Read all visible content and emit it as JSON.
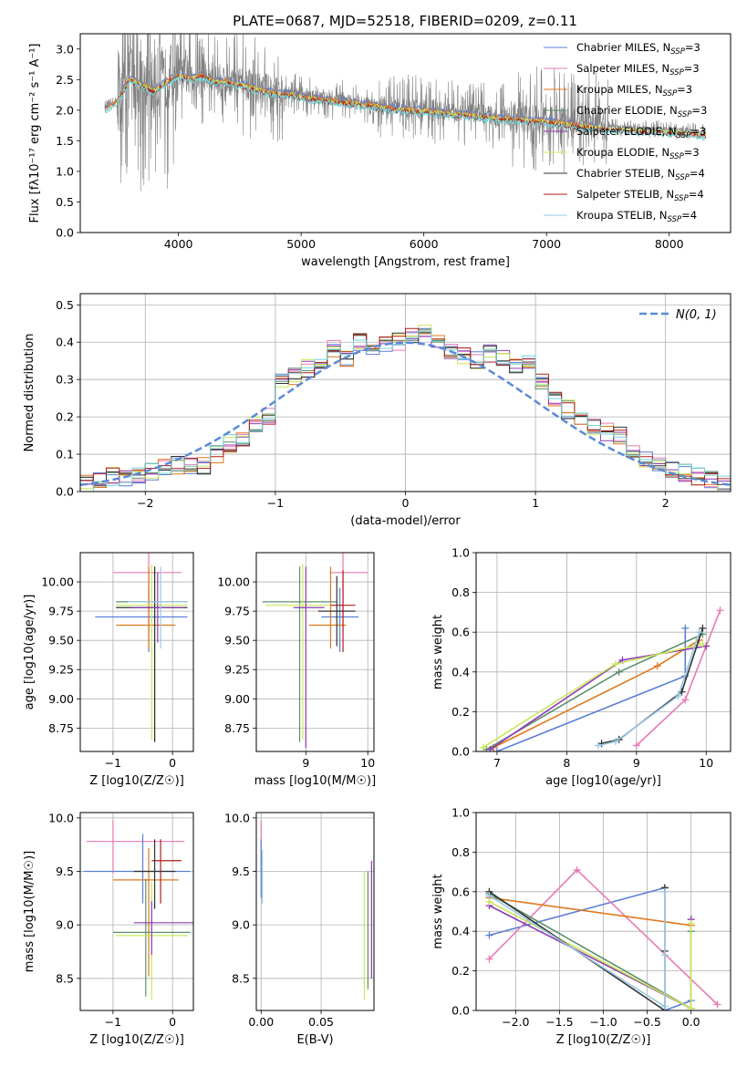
{
  "figure": {
    "title": "PLATE=0687, MJD=52518, FIBERID=0209, z=0.11"
  },
  "colors": {
    "Chabrier MILES": "#5b7fd6",
    "Salpeter MILES": "#e87ab4",
    "Kroupa MILES": "#e0781e",
    "Chabrier ELODIE": "#5b8f6b",
    "Salpeter ELODIE": "#8e3bb5",
    "Kroupa ELODIE": "#c8e85a",
    "Chabrier STELIB": "#333333",
    "Salpeter STELIB": "#b01c1c",
    "Kroupa STELIB": "#9ac8e0",
    "data": "#808080",
    "model_cyan": "#6fd4da",
    "normal": "#5b8ad6",
    "grid": "#b0b0b0"
  },
  "chart_data": [
    {
      "id": "spectrum",
      "type": "line",
      "title": "PLATE=0687, MJD=52518, FIBERID=0209, z=0.11",
      "xlabel": "wavelength [Angstrom, rest frame]",
      "ylabel": "Flux [fλ10⁻¹⁷ erg cm⁻² s⁻¹ A⁻¹]",
      "xlim": [
        3200,
        8500
      ],
      "ylim": [
        0,
        3.25
      ],
      "xticks": [
        4000,
        5000,
        6000,
        7000,
        8000
      ],
      "yticks": [
        0.0,
        0.5,
        1.0,
        1.5,
        2.0,
        2.5,
        3.0
      ],
      "grid": false,
      "legend_position": "upper right",
      "continuum": {
        "x": [
          3400,
          3500,
          3600,
          3700,
          3800,
          3900,
          4000,
          4100,
          4200,
          4300,
          4400,
          4500,
          4600,
          4700,
          4800,
          4900,
          5000,
          5200,
          5400,
          5600,
          5800,
          6000,
          6200,
          6400,
          6600,
          6800,
          7000,
          7200,
          7400,
          7600,
          7800,
          8000,
          8200,
          8300
        ],
        "y": [
          2.05,
          2.15,
          2.55,
          2.45,
          2.35,
          2.5,
          2.6,
          2.55,
          2.6,
          2.5,
          2.5,
          2.45,
          2.4,
          2.35,
          2.3,
          2.3,
          2.25,
          2.2,
          2.15,
          2.1,
          2.05,
          2.02,
          1.98,
          1.95,
          1.9,
          1.88,
          1.85,
          1.8,
          1.75,
          1.72,
          1.7,
          1.68,
          1.65,
          1.63
        ]
      },
      "legend": [
        {
          "label": "Chabrier MILES, N",
          "sub": "SSP",
          "tail": "=3"
        },
        {
          "label": "Salpeter MILES, N",
          "sub": "SSP",
          "tail": "=3"
        },
        {
          "label": "Kroupa MILES, N",
          "sub": "SSP",
          "tail": "=3"
        },
        {
          "label": "Chabrier ELODIE, N",
          "sub": "SSP",
          "tail": "=3"
        },
        {
          "label": "Salpeter ELODIE, N",
          "sub": "SSP",
          "tail": "=3"
        },
        {
          "label": "Kroupa ELODIE, N",
          "sub": "SSP",
          "tail": "=3"
        },
        {
          "label": "Chabrier STELIB, N",
          "sub": "SSP",
          "tail": "=4"
        },
        {
          "label": "Salpeter STELIB, N",
          "sub": "SSP",
          "tail": "=4"
        },
        {
          "label": "Kroupa STELIB, N",
          "sub": "SSP",
          "tail": "=4"
        }
      ]
    },
    {
      "id": "residuals",
      "type": "histogram",
      "xlabel": "(data-model)/error",
      "ylabel": "Normed distribution",
      "xlim": [
        -2.5,
        2.5
      ],
      "ylim": [
        0,
        0.53
      ],
      "xticks": [
        -2,
        -1,
        0,
        1,
        2
      ],
      "yticks": [
        0.0,
        0.1,
        0.2,
        0.3,
        0.4,
        0.5
      ],
      "grid": true,
      "legend_position": "upper right",
      "normal_label": "N(0, 1)",
      "bin_edges": [
        -2.5,
        -2.4,
        -2.3,
        -2.2,
        -2.1,
        -2.0,
        -1.9,
        -1.8,
        -1.7,
        -1.6,
        -1.5,
        -1.4,
        -1.3,
        -1.2,
        -1.1,
        -1.0,
        -0.9,
        -0.8,
        -0.7,
        -0.6,
        -0.5,
        -0.4,
        -0.3,
        -0.2,
        -0.1,
        0.0,
        0.1,
        0.2,
        0.3,
        0.4,
        0.5,
        0.6,
        0.7,
        0.8,
        0.9,
        1.0,
        1.1,
        1.2,
        1.3,
        1.4,
        1.5,
        1.6,
        1.7,
        1.8,
        1.9,
        2.0,
        2.1,
        2.2,
        2.3,
        2.4,
        2.5
      ],
      "base_heights": [
        0.02,
        0.03,
        0.04,
        0.04,
        0.04,
        0.05,
        0.07,
        0.07,
        0.07,
        0.07,
        0.1,
        0.13,
        0.14,
        0.18,
        0.2,
        0.3,
        0.31,
        0.33,
        0.35,
        0.38,
        0.36,
        0.4,
        0.37,
        0.39,
        0.4,
        0.42,
        0.43,
        0.4,
        0.38,
        0.36,
        0.35,
        0.37,
        0.36,
        0.34,
        0.34,
        0.3,
        0.25,
        0.22,
        0.19,
        0.17,
        0.16,
        0.15,
        0.1,
        0.09,
        0.08,
        0.06,
        0.05,
        0.04,
        0.03,
        0.02
      ]
    },
    {
      "id": "age_vs_Z",
      "type": "errorbar",
      "xlabel": "Z [log10(Z/Z☉)]",
      "ylabel": "age  [log10(age/yr)]",
      "xlim": [
        -1.55,
        0.35
      ],
      "ylim": [
        8.55,
        10.25
      ],
      "xticks": [
        -1,
        0
      ],
      "xticklabels": [
        "−1",
        "0"
      ],
      "yticks": [
        8.75,
        9.0,
        9.25,
        9.5,
        9.75,
        10.0
      ],
      "yticklabels": [
        "8.75",
        "9.00",
        "9.25",
        "9.50",
        "9.75",
        "10.00"
      ],
      "grid": true,
      "points": [
        {
          "model": "Salpeter MILES",
          "x": -0.4,
          "xerr": [
            0.6,
            0.55
          ],
          "y": 10.08,
          "yerr": [
            0.5,
            0.2
          ]
        },
        {
          "model": "Chabrier MILES",
          "x": -0.4,
          "xerr": [
            0.9,
            0.65
          ],
          "y": 9.7,
          "yerr": [
            0.3,
            0.25
          ]
        },
        {
          "model": "Kroupa MILES",
          "x": -0.4,
          "xerr": [
            0.55,
            0.45
          ],
          "y": 9.63,
          "yerr": [
            0.2,
            0.5
          ]
        },
        {
          "model": "Chabrier ELODIE",
          "x": -0.3,
          "xerr": [
            0.65,
            0.55
          ],
          "y": 9.83,
          "yerr": [
            1.2,
            0.3
          ]
        },
        {
          "model": "Kroupa ELODIE",
          "x": -0.35,
          "xerr": [
            0.6,
            0.6
          ],
          "y": 9.8,
          "yerr": [
            1.15,
            0.35
          ]
        },
        {
          "model": "Chabrier STELIB",
          "x": -0.3,
          "xerr": [
            0.65,
            0.55
          ],
          "y": 9.78,
          "yerr": [
            1.15,
            0.35
          ]
        },
        {
          "model": "Salpeter ELODIE",
          "x": -0.25,
          "xerr": [
            0.45,
            0.45
          ],
          "y": 9.78,
          "yerr": [
            0.3,
            0.3
          ]
        },
        {
          "model": "Kroupa STELIB",
          "x": -0.2,
          "xerr": [
            0.55,
            0.45
          ],
          "y": 9.83,
          "yerr": [
            0.4,
            0.3
          ]
        }
      ]
    },
    {
      "id": "age_vs_mass",
      "type": "errorbar",
      "xlabel": "mass [log10(M/M☉)]",
      "ylabel": "",
      "xlim": [
        8.2,
        10.1
      ],
      "ylim": [
        8.55,
        10.25
      ],
      "xticks": [
        9,
        10
      ],
      "xticklabels": [
        "9",
        "10"
      ],
      "yticks": [
        8.75,
        9.0,
        9.25,
        9.5,
        9.75,
        10.0
      ],
      "yticklabels": [
        "8.75",
        "9.00",
        "9.25",
        "9.50",
        "9.75",
        "10.00"
      ],
      "grid": true,
      "points": [
        {
          "model": "Salpeter MILES",
          "x": 9.6,
          "xerr": [
            0.2,
            0.4
          ],
          "y": 10.08,
          "yerr": [
            0.5,
            0.2
          ]
        },
        {
          "model": "Chabrier MILES",
          "x": 9.55,
          "xerr": [
            0.3,
            0.3
          ],
          "y": 9.7,
          "yerr": [
            0.3,
            0.25
          ]
        },
        {
          "model": "Kroupa MILES",
          "x": 9.4,
          "xerr": [
            0.35,
            0.25
          ],
          "y": 9.63,
          "yerr": [
            0.2,
            0.5
          ]
        },
        {
          "model": "Chabrier ELODIE",
          "x": 8.9,
          "xerr": [
            0.6,
            0.6
          ],
          "y": 9.83,
          "yerr": [
            1.2,
            0.3
          ]
        },
        {
          "model": "Kroupa ELODIE",
          "x": 8.95,
          "xerr": [
            0.6,
            0.5
          ],
          "y": 9.8,
          "yerr": [
            1.15,
            0.35
          ]
        },
        {
          "model": "Salpeter ELODIE",
          "x": 9.0,
          "xerr": [
            0.2,
            0.3
          ],
          "y": 9.78,
          "yerr": [
            1.2,
            0.35
          ]
        },
        {
          "model": "Salpeter STELIB",
          "x": 9.6,
          "xerr": [
            0.2,
            0.2
          ],
          "y": 9.8,
          "yerr": [
            0.4,
            0.3
          ]
        },
        {
          "model": "Chabrier STELIB",
          "x": 9.5,
          "xerr": [
            0.3,
            0.3
          ],
          "y": 9.75,
          "yerr": [
            0.3,
            0.3
          ]
        }
      ]
    },
    {
      "id": "weight_vs_age",
      "type": "line",
      "xlabel": "age  [log10(age/yr)]",
      "ylabel": "mass weight",
      "xlim": [
        6.7,
        10.35
      ],
      "ylim": [
        0,
        1.0
      ],
      "xticks": [
        7,
        8,
        9,
        10
      ],
      "yticks": [
        0.0,
        0.2,
        0.4,
        0.6,
        0.8,
        1.0
      ],
      "grid": true,
      "series": [
        {
          "model": "Chabrier MILES",
          "x": [
            7.0,
            9.7,
            9.7
          ],
          "y": [
            0.0,
            0.38,
            0.62
          ]
        },
        {
          "model": "Salpeter MILES",
          "x": [
            9.0,
            9.7,
            10.2
          ],
          "y": [
            0.03,
            0.26,
            0.71
          ]
        },
        {
          "model": "Kroupa MILES",
          "x": [
            6.95,
            9.3,
            9.9
          ],
          "y": [
            0.02,
            0.43,
            0.56
          ]
        },
        {
          "model": "Chabrier ELODIE",
          "x": [
            6.85,
            8.75,
            9.95
          ],
          "y": [
            0.01,
            0.4,
            0.59
          ]
        },
        {
          "model": "Salpeter ELODIE",
          "x": [
            6.9,
            8.8,
            10.0
          ],
          "y": [
            0.01,
            0.46,
            0.53
          ]
        },
        {
          "model": "Kroupa ELODIE",
          "x": [
            6.8,
            8.7,
            9.95
          ],
          "y": [
            0.02,
            0.44,
            0.54
          ]
        },
        {
          "model": "Chabrier STELIB",
          "x": [
            8.5,
            8.75,
            9.65,
            9.95
          ],
          "y": [
            0.04,
            0.06,
            0.3,
            0.62
          ]
        },
        {
          "model": "Kroupa STELIB",
          "x": [
            8.45,
            8.7,
            9.6,
            9.9
          ],
          "y": [
            0.03,
            0.05,
            0.28,
            0.6
          ]
        }
      ]
    },
    {
      "id": "mass_vs_Z",
      "type": "errorbar",
      "xlabel": "Z [log10(Z/Z☉)]",
      "ylabel": "mass [log10(M/M☉)]",
      "xlim": [
        -1.55,
        0.35
      ],
      "ylim": [
        8.2,
        10.05
      ],
      "xticks": [
        -1,
        0
      ],
      "xticklabels": [
        "−1",
        "0"
      ],
      "yticks": [
        8.5,
        9.0,
        9.5,
        10.0
      ],
      "yticklabels": [
        "8.5",
        "9.0",
        "9.5",
        "10.0"
      ],
      "grid": true,
      "points": [
        {
          "model": "Salpeter MILES",
          "x": -1.0,
          "xerr": [
            0.45,
            1.2
          ],
          "y": 9.78,
          "yerr": [
            0.3,
            0.2
          ]
        },
        {
          "model": "Chabrier MILES",
          "x": -0.5,
          "xerr": [
            1.0,
            0.8
          ],
          "y": 9.5,
          "yerr": [
            0.3,
            0.35
          ]
        },
        {
          "model": "Kroupa MILES",
          "x": -0.4,
          "xerr": [
            0.6,
            0.5
          ],
          "y": 9.42,
          "yerr": [
            0.9,
            0.3
          ]
        },
        {
          "model": "Chabrier ELODIE",
          "x": -0.45,
          "xerr": [
            0.55,
            0.75
          ],
          "y": 8.93,
          "yerr": [
            0.6,
            0.5
          ]
        },
        {
          "model": "Kroupa ELODIE",
          "x": -0.35,
          "xerr": [
            0.6,
            0.6
          ],
          "y": 8.9,
          "yerr": [
            0.6,
            0.5
          ]
        },
        {
          "model": "Salpeter ELODIE",
          "x": -0.35,
          "xerr": [
            0.3,
            0.9
          ],
          "y": 9.02,
          "yerr": [
            0.3,
            0.2
          ]
        },
        {
          "model": "Salpeter STELIB",
          "x": -0.2,
          "xerr": [
            0.15,
            0.35
          ],
          "y": 9.6,
          "yerr": [
            0.4,
            0.2
          ]
        },
        {
          "model": "Chabrier STELIB",
          "x": -0.3,
          "xerr": [
            0.35,
            0.35
          ],
          "y": 9.5,
          "yerr": [
            0.35,
            0.3
          ]
        }
      ]
    },
    {
      "id": "mass_vs_EBV",
      "type": "errorbar",
      "xlabel": "E(B-V)",
      "ylabel": "",
      "xlim": [
        -0.004,
        0.094
      ],
      "ylim": [
        8.2,
        10.05
      ],
      "xticks": [
        0.0,
        0.05
      ],
      "xticklabels": [
        "0.00",
        "0.05"
      ],
      "yticks": [
        8.5,
        9.0,
        9.5,
        10.0
      ],
      "yticklabels": [
        "8.5",
        "9.0",
        "9.5",
        "10.0"
      ],
      "grid": true,
      "points": [
        {
          "model": "Salpeter MILES",
          "x": 0.0,
          "xerr": [
            0.0,
            0.0
          ],
          "y": 9.78,
          "yerr": [
            0.3,
            0.2
          ]
        },
        {
          "model": "Chabrier MILES",
          "x": 0.0,
          "xerr": [
            0.0,
            0.0
          ],
          "y": 9.5,
          "yerr": [
            0.25,
            0.3
          ]
        },
        {
          "model": "Kroupa STELIB",
          "x": 0.001,
          "xerr": [
            0.0,
            0.0
          ],
          "y": 9.5,
          "yerr": [
            0.3,
            0.2
          ]
        },
        {
          "model": "Kroupa ELODIE",
          "x": 0.086,
          "xerr": [
            0.0,
            0.0
          ],
          "y": 8.9,
          "yerr": [
            0.6,
            0.6
          ]
        },
        {
          "model": "Salpeter ELODIE",
          "x": 0.092,
          "xerr": [
            0.0,
            0.0
          ],
          "y": 9.0,
          "yerr": [
            0.5,
            0.6
          ]
        },
        {
          "model": "Chabrier ELODIE",
          "x": 0.089,
          "xerr": [
            0.0,
            0.0
          ],
          "y": 8.95,
          "yerr": [
            0.55,
            0.55
          ]
        }
      ]
    },
    {
      "id": "weight_vs_Z",
      "type": "line",
      "xlabel": "Z [log10(Z/Z☉)]",
      "ylabel": "mass weight",
      "xlim": [
        -2.45,
        0.45
      ],
      "ylim": [
        0,
        1.0
      ],
      "xticks": [
        -2.0,
        -1.5,
        -1.0,
        -0.5,
        0.0
      ],
      "xticklabels": [
        "−2.0",
        "−1.5",
        "−1.0",
        "−0.5",
        "0.0"
      ],
      "yticks": [
        0.0,
        0.2,
        0.4,
        0.6,
        0.8,
        1.0
      ],
      "grid": true,
      "series": [
        {
          "model": "Chabrier MILES",
          "x": [
            -2.3,
            -0.3,
            -0.3,
            0.0
          ],
          "y": [
            0.38,
            0.62,
            0.0,
            0.05
          ]
        },
        {
          "model": "Salpeter MILES",
          "x": [
            -2.3,
            -1.3,
            0.3
          ],
          "y": [
            0.26,
            0.71,
            0.03
          ]
        },
        {
          "model": "Kroupa MILES",
          "x": [
            -2.3,
            0.0,
            0.0
          ],
          "y": [
            0.57,
            0.43,
            0.01
          ]
        },
        {
          "model": "Chabrier ELODIE",
          "x": [
            -2.3,
            0.0,
            0.0
          ],
          "y": [
            0.59,
            0.01,
            0.4
          ]
        },
        {
          "model": "Salpeter ELODIE",
          "x": [
            -2.3,
            0.0,
            0.0
          ],
          "y": [
            0.53,
            0.01,
            0.46
          ]
        },
        {
          "model": "Kroupa ELODIE",
          "x": [
            -2.3,
            0.0,
            0.0
          ],
          "y": [
            0.55,
            0.01,
            0.44
          ]
        },
        {
          "model": "Chabrier STELIB",
          "x": [
            -2.3,
            -0.3,
            -0.3,
            -0.3
          ],
          "y": [
            0.6,
            0.0,
            0.3,
            0.62
          ]
        },
        {
          "model": "Kroupa STELIB",
          "x": [
            -2.3,
            -0.3,
            -0.3,
            -0.3
          ],
          "y": [
            0.58,
            0.02,
            0.28,
            0.6
          ]
        }
      ]
    }
  ]
}
